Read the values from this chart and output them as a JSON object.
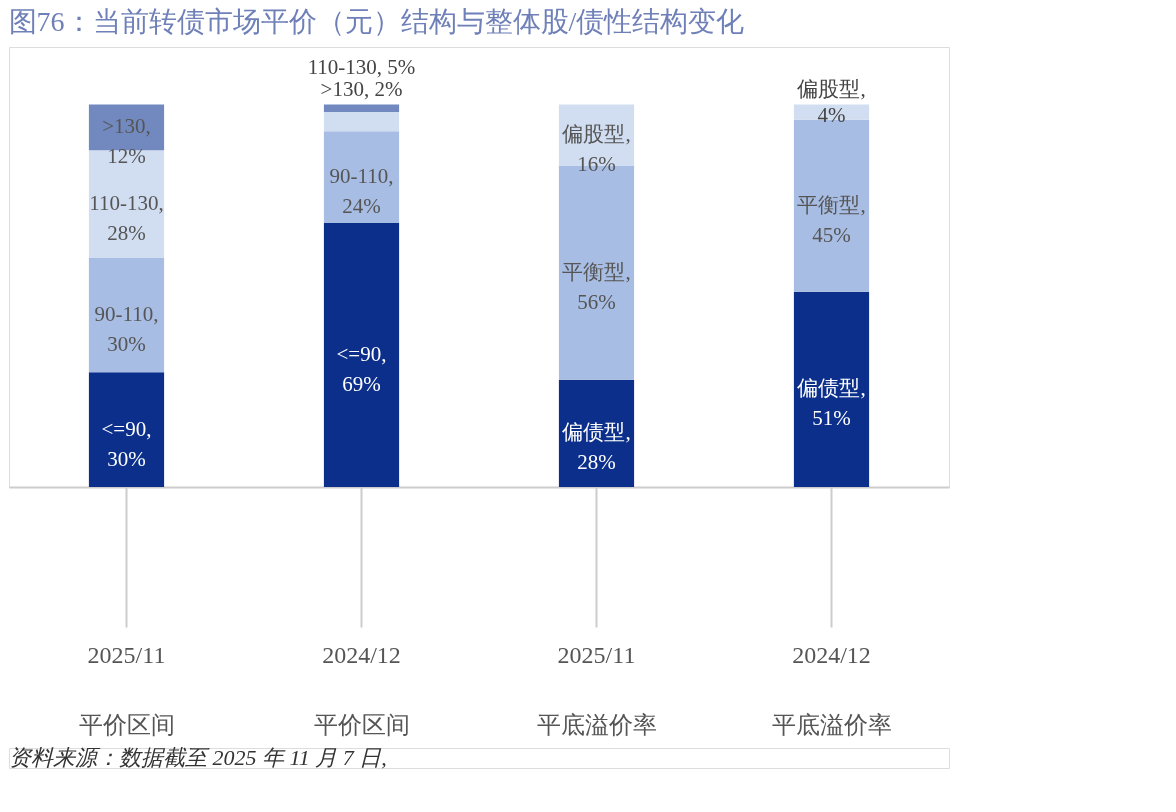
{
  "chart_data": {
    "type": "bar",
    "title": "图76：当前转债市场平价（元）结构与整体股/债性结构变化",
    "categories": [
      "2025/11 平价区间",
      "2024/12 平价区间",
      "2025/11 平底溢价率",
      "2024/12 平底溢价率"
    ],
    "stacked": true,
    "grid": false,
    "tick_labels": "x",
    "series": [
      {
        "color": "#0b2f8a",
        "values": [
          30,
          69,
          28,
          51
        ],
        "value_labels": [
          "<=90, 30%",
          "<=90, 69%",
          "偏债型, 28%",
          "偏债型, 51%"
        ]
      },
      {
        "color": "#a8bde3",
        "values": [
          30,
          24,
          56,
          45
        ],
        "value_labels": [
          "90-110, 30%",
          "90-110, 24%",
          "平衡型, 56%",
          "平衡型, 45%"
        ]
      },
      {
        "color": "#d1ddf1",
        "values": [
          28,
          5,
          16,
          4
        ],
        "value_labels": [
          "110-130, 28%",
          "110-130, 5%",
          "偏股型, 16%",
          "偏股型, 4%"
        ]
      },
      {
        "color": "#7189bf",
        "values": [
          12,
          2,
          null,
          null
        ],
        "value_labels": [
          ">130, 12%",
          ">130, 2%",
          null,
          null
        ]
      }
    ],
    "annotations": [
      "资料来源：数据截至 2025 年 11 月 7 日,"
    ]
  }
}
